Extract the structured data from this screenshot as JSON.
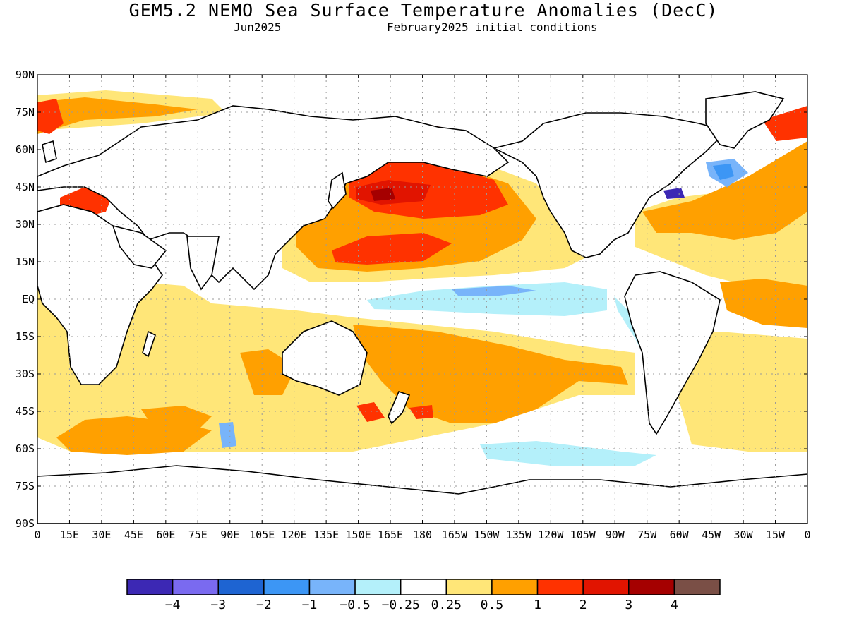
{
  "title": "GEM5.2_NEMO Sea Surface Temperature Anomalies (DecC)",
  "subtitle_left": "Jun2025",
  "subtitle_right": "February2025 initial conditions",
  "map": {
    "lon_range": [
      0,
      360
    ],
    "lat_range": [
      -90,
      90
    ],
    "y_tick_labels": [
      "90N",
      "75N",
      "60N",
      "45N",
      "30N",
      "15N",
      "EQ",
      "15S",
      "30S",
      "45S",
      "60S",
      "75S",
      "90S"
    ],
    "x_tick_labels": [
      "0",
      "15E",
      "30E",
      "45E",
      "60E",
      "75E",
      "90E",
      "105E",
      "120E",
      "135E",
      "150E",
      "165E",
      "180",
      "165W",
      "150W",
      "135W",
      "120W",
      "105W",
      "90W",
      "75W",
      "60W",
      "45W",
      "30W",
      "15W",
      "0"
    ],
    "grid": "dotted"
  },
  "colorbar": {
    "colors": [
      "#3c28b4",
      "#7a6af0",
      "#1e64d2",
      "#3c96f5",
      "#78b4fa",
      "#b4f0fa",
      "#ffffff",
      "#ffe678",
      "#ffa000",
      "#ff3200",
      "#e11400",
      "#a50000",
      "#7a4f46"
    ],
    "labels": [
      "−4",
      "−3",
      "−2",
      "−1",
      "−0.5",
      "−0.25",
      "0.25",
      "0.5",
      "1",
      "2",
      "3",
      "4"
    ]
  }
}
